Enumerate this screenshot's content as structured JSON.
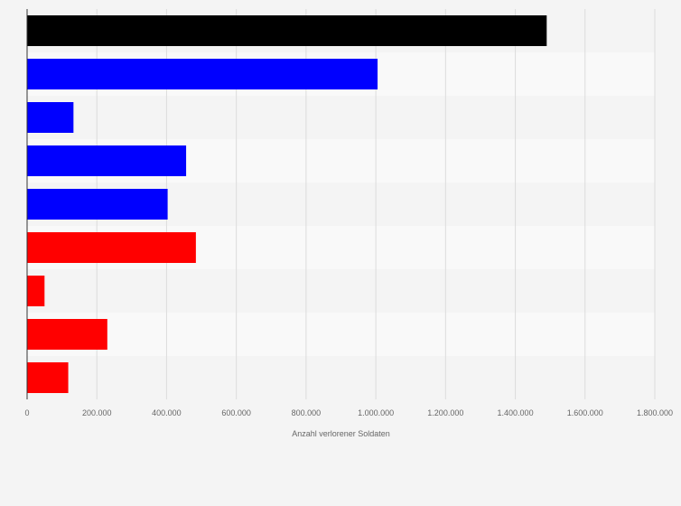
{
  "chart_data": {
    "type": "bar",
    "orientation": "horizontal",
    "categories": [
      "",
      "",
      "",
      "",
      "",
      "",
      "",
      "",
      ""
    ],
    "values": [
      1490000,
      1005000,
      133000,
      456000,
      403000,
      484000,
      50000,
      230000,
      118000
    ],
    "bar_colors": [
      "#000000",
      "#0000ff",
      "#0000ff",
      "#0000ff",
      "#0000ff",
      "#ff0000",
      "#ff0000",
      "#ff0000",
      "#ff0000"
    ],
    "xlabel": "Anzahl verlorener Soldaten",
    "ylabel": "",
    "xlim": [
      0,
      1800000
    ],
    "xticks": [
      0,
      200000,
      400000,
      600000,
      800000,
      1000000,
      1200000,
      1400000,
      1600000,
      1800000
    ],
    "xtick_labels": [
      "0",
      "200.000",
      "400.000",
      "600.000",
      "800.000",
      "1.000.000",
      "1.200.000",
      "1.400.000",
      "1.600.000",
      "1.800.000"
    ],
    "grid": true,
    "legend": "none",
    "colors": {
      "background": "#f4f4f4",
      "band_light": "#f9f9f9",
      "band_dark": "#f4f4f4",
      "gridline": "#dcdcdc",
      "axis": "#333333",
      "text": "#666666"
    }
  }
}
